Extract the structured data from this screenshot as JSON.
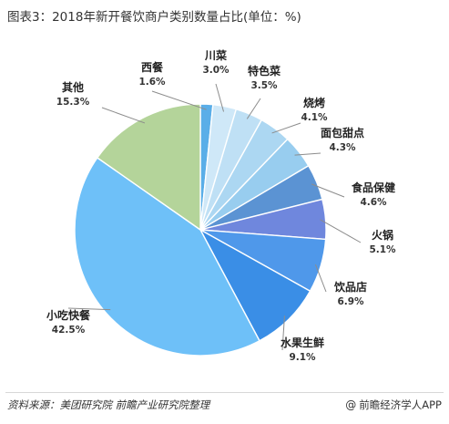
{
  "title": "图表3：2018年新开餐饮商户类别数量占比(单位：%)",
  "footer": {
    "source": "资料来源：美团研究院 前瞻产业研究院整理",
    "brand_icon": "at-icon",
    "brand": "前瞻经济学人APP"
  },
  "chart_data": {
    "type": "pie",
    "title": "图表3：2018年新开餐饮商户类别数量占比(单位：%)",
    "unit": "%",
    "start": "12 o'clock",
    "direction": "clockwise",
    "slices": [
      {
        "label": "西餐",
        "value": 1.6,
        "display": "1.6%",
        "color": "#5aaee8"
      },
      {
        "label": "川菜",
        "value": 3.0,
        "display": "3.0%",
        "color": "#cfe8f8"
      },
      {
        "label": "特色菜",
        "value": 3.5,
        "display": "3.5%",
        "color": "#bfe0f5"
      },
      {
        "label": "烧烤",
        "value": 4.1,
        "display": "4.1%",
        "color": "#acd7f2"
      },
      {
        "label": "面包甜点",
        "value": 4.3,
        "display": "4.3%",
        "color": "#98cdef"
      },
      {
        "label": "食品保健",
        "value": 4.6,
        "display": "4.6%",
        "color": "#5b93d3"
      },
      {
        "label": "火锅",
        "value": 5.1,
        "display": "5.1%",
        "color": "#6f87dd"
      },
      {
        "label": "饮品店",
        "value": 6.9,
        "display": "6.9%",
        "color": "#4f98ea"
      },
      {
        "label": "水果生鲜",
        "value": 9.1,
        "display": "9.1%",
        "color": "#3a8ee6"
      },
      {
        "label": "小吃快餐",
        "value": 42.5,
        "display": "42.5%",
        "color": "#6ec0f8"
      },
      {
        "label": "其他",
        "value": 15.3,
        "display": "15.3%",
        "color": "#b4d49a"
      }
    ]
  }
}
